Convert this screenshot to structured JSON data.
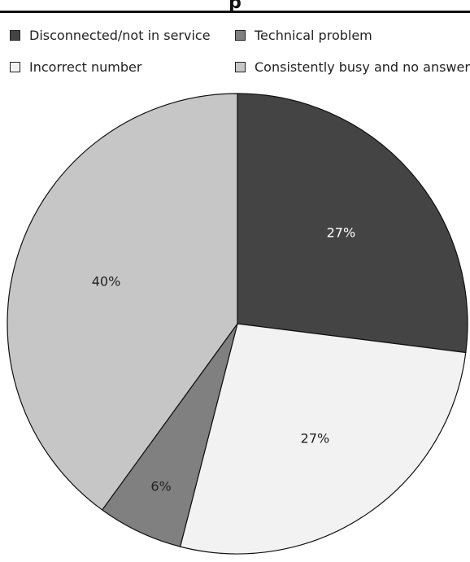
{
  "chart_data": {
    "type": "pie",
    "title_fragment": "p",
    "categories": [
      "Disconnected/not in service",
      "Incorrect number",
      "Technical problem",
      "Consistently busy and no answer"
    ],
    "values": [
      27,
      27,
      6,
      40
    ],
    "value_labels": [
      "27%",
      "27%",
      "6%",
      "40%"
    ],
    "colors": [
      "#444444",
      "#f2f2f2",
      "#808080",
      "#c6c6c6"
    ],
    "label_colors": [
      "#ffffff",
      "#222222",
      "#222222",
      "#222222"
    ],
    "legend_placement": "top",
    "legend": [
      {
        "label": "Disconnected/not in service",
        "color": "#444444"
      },
      {
        "label": "Technical problem",
        "color": "#808080"
      },
      {
        "label": "Incorrect number",
        "color": "#f2f2f2"
      },
      {
        "label": "Consistently busy and no answer",
        "color": "#c6c6c6"
      }
    ]
  }
}
